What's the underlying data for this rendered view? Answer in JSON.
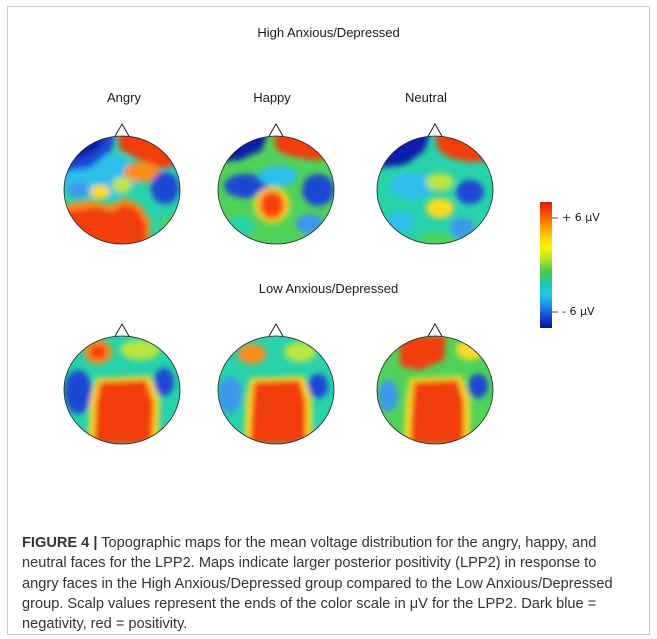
{
  "figure": {
    "top_group_title": "High Anxious/Depressed",
    "bottom_group_title": "Low Anxious/Depressed",
    "conditions": [
      "Angry",
      "Happy",
      "Neutral"
    ],
    "color_scale": {
      "max_label": "+ 6 μV",
      "min_label": "- 6 μV",
      "colors": [
        "#d81e05",
        "#f24e08",
        "#ff8c00",
        "#ffcc00",
        "#fff200",
        "#b8e61e",
        "#4cc94c",
        "#1fc9a0",
        "#1ec8e6",
        "#1e8ee6",
        "#1446d2",
        "#0a14a0"
      ]
    },
    "map_colors": {
      "red": "#f23d0c",
      "orange": "#fb8c1e",
      "yellow": "#fadc28",
      "yellow_green": "#b9e641",
      "green": "#50d25a",
      "teal": "#28d2aa",
      "cyan": "#2dbeeb",
      "light_blue": "#3c96eb",
      "blue": "#1e46d2",
      "dark_blue": "#0a1eaa"
    },
    "caption_label": "FIGURE 4 |",
    "caption_text": "Topographic maps for the mean voltage distribution for the angry, happy, and neutral faces for the LPP2. Maps indicate larger posterior positivity (LPP2) in response to angry faces in the High Anxious/Depressed group compared to the Low Anxious/Depressed group. Scalp values represent the ends of the color scale in μV for the LPP2. Dark blue = negativity, red = positivity."
  }
}
